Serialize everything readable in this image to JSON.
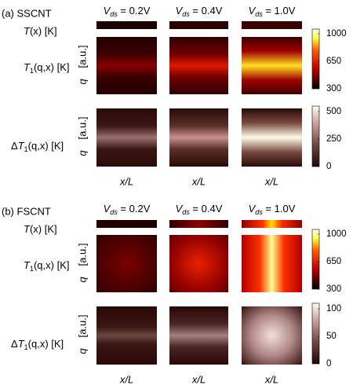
{
  "panels": [
    {
      "label": "(a) SSCNT",
      "columns": [
        {
          "var": "V",
          "sub": "ds",
          "rest": " = 0.2V"
        },
        {
          "var": "V",
          "sub": "ds",
          "rest": " = 0.4V"
        },
        {
          "var": "V",
          "sub": "ds",
          "rest": " = 1.0V"
        }
      ],
      "rows": [
        {
          "label": {
            "sym": "T",
            "rest": "(x) [K]"
          }
        },
        {
          "label": {
            "sym": "T",
            "sub": "1",
            "rest": "(q,x) [K]"
          },
          "y_label": "q",
          "y_unit": "[a.u.]"
        },
        {
          "label": {
            "pre": "Δ",
            "sym": "T",
            "sub": "1",
            "rest": "(q,x) [K]"
          },
          "y_label": "q",
          "y_unit": "[a.u.]"
        }
      ],
      "x_label": "x/L",
      "colorbars": [
        {
          "lim": [
            300,
            1060
          ],
          "ticks": [
            300,
            650,
            1000
          ]
        },
        {
          "lim": [
            0,
            550
          ],
          "ticks": [
            0,
            250,
            500
          ]
        }
      ]
    },
    {
      "label": "(b) FSCNT",
      "columns": [
        {
          "var": "V",
          "sub": "ds",
          "rest": " = 0.2V"
        },
        {
          "var": "V",
          "sub": "ds",
          "rest": " = 0.4V"
        },
        {
          "var": "V",
          "sub": "ds",
          "rest": " = 1.0V"
        }
      ],
      "rows": [
        {
          "label": {
            "sym": "T",
            "rest": "(x) [K]"
          }
        },
        {
          "label": {
            "sym": "T",
            "sub": "1",
            "rest": "(q,x) [K]"
          },
          "y_label": "q",
          "y_unit": "[a.u.]"
        },
        {
          "label": {
            "pre": "Δ",
            "sym": "T",
            "sub": "1",
            "rest": "(q,x) [K]"
          },
          "y_label": "q",
          "y_unit": "[a.u.]"
        }
      ],
      "x_label": "x/L",
      "colorbars": [
        {
          "lim": [
            300,
            1060
          ],
          "ticks": [
            300,
            650,
            1000
          ]
        },
        {
          "lim": [
            0,
            110
          ],
          "ticks": [
            0,
            50,
            100
          ]
        }
      ]
    }
  ]
}
